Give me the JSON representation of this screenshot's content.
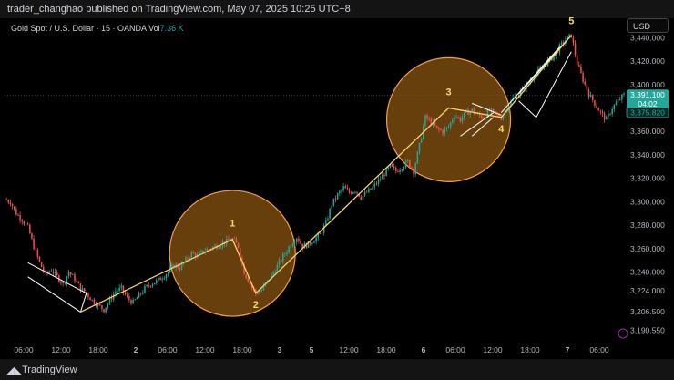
{
  "header": {
    "published_by": "trader_changhao published on TradingView.com, May 07, 2025 10:25 UTC+8"
  },
  "footer": {
    "brand": "TradingView",
    "logo_icon": "tradingview-logo-icon"
  },
  "legend": {
    "symbol": "Gold Spot / U.S. Dollar · 15 · OANDA",
    "vol_label": "Vol",
    "vol_value": "7.36 K"
  },
  "axis": {
    "currency": "USD"
  },
  "price_tags": {
    "current": "3,391.100",
    "countdown": "04:02",
    "secondary": "3,375.820"
  },
  "colors": {
    "up": "#26a69a",
    "down": "#ef5350",
    "wave": "#f5d76e",
    "circle": "#f0a04b",
    "circle_fill": "#8a5410"
  },
  "chart_data": {
    "type": "candlestick",
    "title": "",
    "ylim": [
      3183,
      3455
    ],
    "y_ticks": [
      3440,
      3420,
      3400,
      3380,
      3360,
      3340,
      3320,
      3300,
      3280,
      3260,
      3240,
      3224,
      3206.5,
      3190.55
    ],
    "y_tick_labels": [
      "3,440.000",
      "3,420.000",
      "3,400.000",
      "3,380.000",
      "3,360.000",
      "3,340.000",
      "3,320.000",
      "3,300.000",
      "3,280.000",
      "3,260.000",
      "3,240.000",
      "3,224.000",
      "3,206.500",
      "3,190.550"
    ],
    "x_tick_labels": [
      "06:00",
      "12:00",
      "18:00",
      "2",
      "06:00",
      "12:00",
      "18:00",
      "3",
      "5",
      "12:00",
      "18:00",
      "6",
      "06:00",
      "12:00",
      "18:00",
      "7",
      "06:00"
    ],
    "close_path": [
      [
        0,
        3302
      ],
      [
        3,
        3300
      ],
      [
        6,
        3290
      ],
      [
        9,
        3285
      ],
      [
        12,
        3278
      ],
      [
        15,
        3262
      ],
      [
        18,
        3248
      ],
      [
        21,
        3238
      ],
      [
        24,
        3242
      ],
      [
        27,
        3236
      ],
      [
        30,
        3230
      ],
      [
        33,
        3240
      ],
      [
        36,
        3234
      ],
      [
        39,
        3226
      ],
      [
        42,
        3222
      ],
      [
        45,
        3216
      ],
      [
        48,
        3212
      ],
      [
        51,
        3208
      ],
      [
        54,
        3216
      ],
      [
        57,
        3224
      ],
      [
        60,
        3226
      ],
      [
        63,
        3218
      ],
      [
        66,
        3214
      ],
      [
        69,
        3220
      ],
      [
        72,
        3226
      ],
      [
        75,
        3230
      ],
      [
        78,
        3232
      ],
      [
        81,
        3236
      ],
      [
        84,
        3240
      ],
      [
        87,
        3246
      ],
      [
        90,
        3244
      ],
      [
        93,
        3250
      ],
      [
        96,
        3256
      ],
      [
        99,
        3254
      ],
      [
        102,
        3258
      ],
      [
        105,
        3260
      ],
      [
        108,
        3262
      ],
      [
        111,
        3264
      ],
      [
        114,
        3266
      ],
      [
        117,
        3268
      ],
      [
        120,
        3262
      ],
      [
        123,
        3240
      ],
      [
        126,
        3230
      ],
      [
        129,
        3222
      ],
      [
        132,
        3225
      ],
      [
        135,
        3232
      ],
      [
        138,
        3240
      ],
      [
        141,
        3248
      ],
      [
        144,
        3256
      ],
      [
        147,
        3264
      ],
      [
        150,
        3270
      ],
      [
        153,
        3262
      ],
      [
        156,
        3264
      ],
      [
        159,
        3268
      ],
      [
        162,
        3272
      ],
      [
        165,
        3282
      ],
      [
        168,
        3298
      ],
      [
        171,
        3306
      ],
      [
        174,
        3312
      ],
      [
        177,
        3308
      ],
      [
        180,
        3310
      ],
      [
        183,
        3304
      ],
      [
        186,
        3308
      ],
      [
        189,
        3312
      ],
      [
        192,
        3318
      ],
      [
        195,
        3324
      ],
      [
        198,
        3330
      ],
      [
        201,
        3326
      ],
      [
        204,
        3330
      ],
      [
        207,
        3334
      ],
      [
        210,
        3326
      ],
      [
        213,
        3348
      ],
      [
        216,
        3372
      ],
      [
        219,
        3368
      ],
      [
        222,
        3362
      ],
      [
        225,
        3360
      ],
      [
        228,
        3364
      ],
      [
        231,
        3374
      ],
      [
        234,
        3370
      ],
      [
        237,
        3376
      ],
      [
        240,
        3378
      ],
      [
        243,
        3374
      ],
      [
        246,
        3372
      ],
      [
        249,
        3378
      ],
      [
        252,
        3374
      ],
      [
        255,
        3372
      ],
      [
        258,
        3380
      ],
      [
        261,
        3388
      ],
      [
        264,
        3392
      ],
      [
        267,
        3398
      ],
      [
        270,
        3404
      ],
      [
        273,
        3410
      ],
      [
        276,
        3414
      ],
      [
        279,
        3420
      ],
      [
        282,
        3424
      ],
      [
        285,
        3432
      ],
      [
        288,
        3438
      ],
      [
        291,
        3442
      ],
      [
        294,
        3418
      ],
      [
        297,
        3404
      ],
      [
        300,
        3392
      ],
      [
        303,
        3384
      ],
      [
        306,
        3376
      ],
      [
        309,
        3370
      ],
      [
        312,
        3380
      ],
      [
        315,
        3386
      ],
      [
        318,
        3391.1
      ]
    ],
    "wave_labels": [
      {
        "label": "1",
        "index": 117,
        "price": 3268
      },
      {
        "label": "2",
        "index": 129,
        "price": 3222
      },
      {
        "label": "3",
        "index": 228,
        "price": 3380
      },
      {
        "label": "4",
        "index": 255,
        "price": 3372
      },
      {
        "label": "5",
        "index": 291,
        "price": 3442
      }
    ]
  }
}
